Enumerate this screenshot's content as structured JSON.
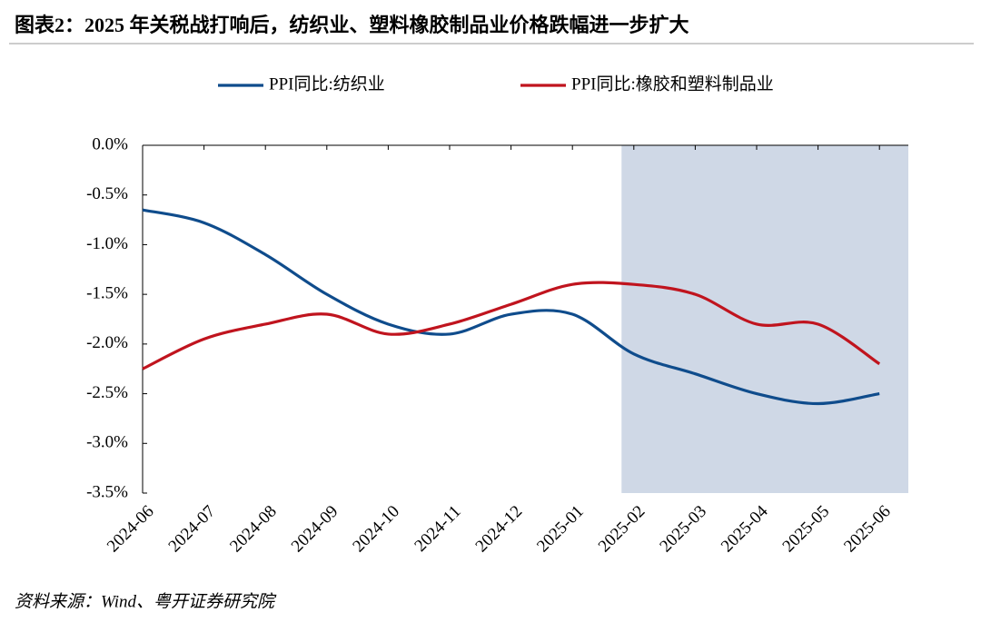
{
  "chart_data": {
    "type": "line",
    "title": "图表2：2025 年关税战打响后，纺织业、塑料橡胶制品业价格跌幅进一步扩大",
    "source": "资料来源：Wind、粤开证券研究院",
    "categories": [
      "2024-06",
      "2024-07",
      "2024-08",
      "2024-09",
      "2024-10",
      "2024-11",
      "2024-12",
      "2025-01",
      "2025-02",
      "2025-03",
      "2025-04",
      "2025-05",
      "2025-06"
    ],
    "series": [
      {
        "name": "PPI同比:纺织业",
        "color": "#0f4c8c",
        "values": [
          -0.65,
          -0.78,
          -1.1,
          -1.5,
          -1.8,
          -1.9,
          -1.7,
          -1.7,
          -2.1,
          -2.3,
          -2.5,
          -2.6,
          -2.5
        ]
      },
      {
        "name": "PPI同比:橡胶和塑料制品业",
        "color": "#c0141e",
        "values": [
          -2.25,
          -1.95,
          -1.8,
          -1.7,
          -1.9,
          -1.8,
          -1.6,
          -1.4,
          -1.4,
          -1.5,
          -1.8,
          -1.8,
          -2.2
        ]
      }
    ],
    "highlight_from": "2025-02",
    "highlight_color": "#cfd8e6",
    "ylim": [
      -3.5,
      0
    ],
    "yticks": [
      {
        "value": 0,
        "label": "0.0%"
      },
      {
        "value": -0.5,
        "label": "-0.5%"
      },
      {
        "value": -1,
        "label": "-1.0%"
      },
      {
        "value": -1.5,
        "label": "-1.5%"
      },
      {
        "value": -2,
        "label": "-2.0%"
      },
      {
        "value": -2.5,
        "label": "-2.5%"
      },
      {
        "value": -3,
        "label": "-3.0%"
      },
      {
        "value": -3.5,
        "label": "-3.5%"
      }
    ],
    "legend": "top"
  }
}
